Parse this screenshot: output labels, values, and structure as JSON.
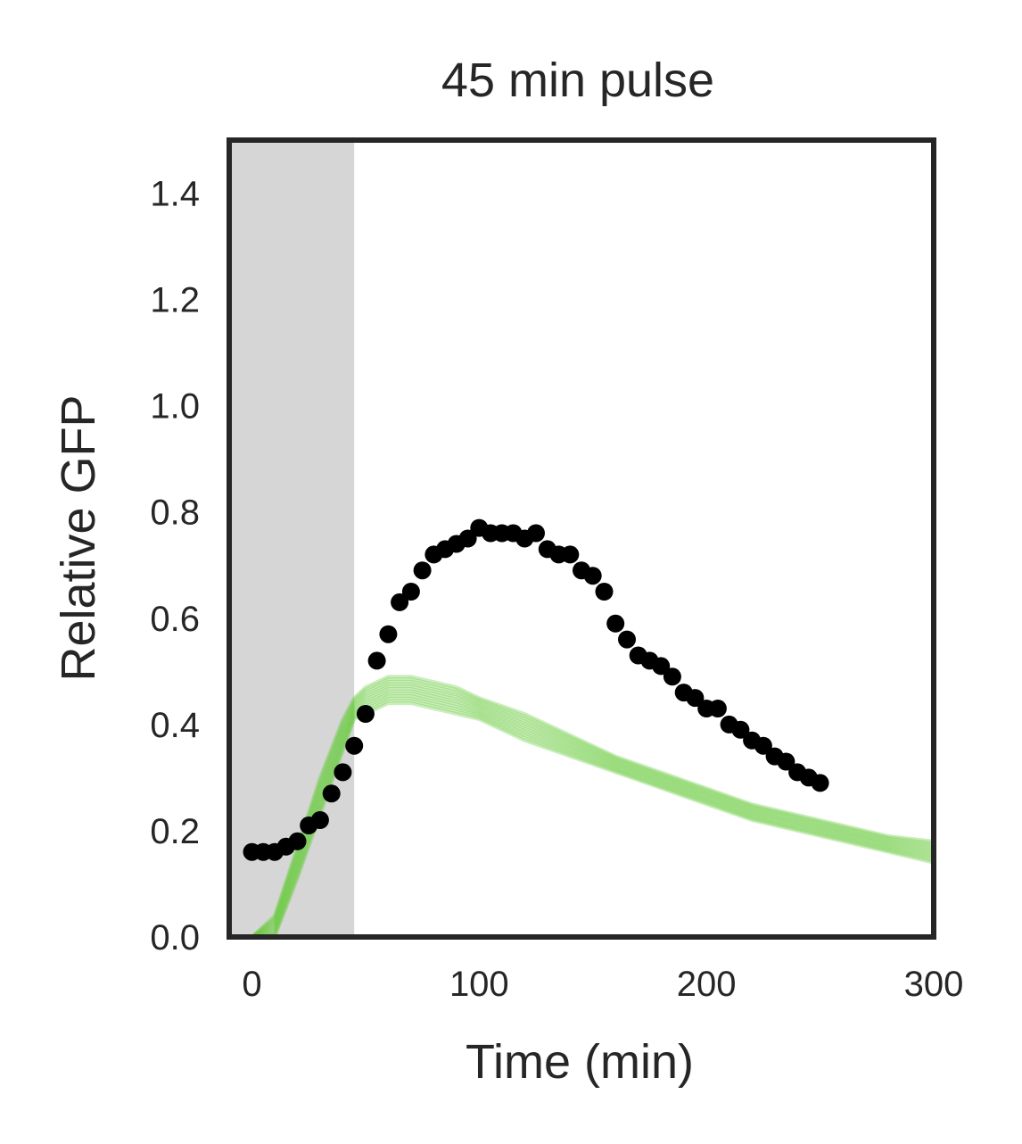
{
  "chart_data": {
    "type": "scatter",
    "title": "45 min pulse",
    "xlabel": "Time (min)",
    "ylabel": "Relative GFP",
    "xlim": [
      -10,
      300
    ],
    "ylim": [
      0,
      1.5
    ],
    "x_ticks": [
      0,
      100,
      200,
      300
    ],
    "y_ticks": [
      0.0,
      0.2,
      0.4,
      0.6,
      0.8,
      1.0,
      1.2,
      1.4
    ],
    "x_tick_labels": [
      "0",
      "100",
      "200",
      "300"
    ],
    "y_tick_labels": [
      "0.0",
      "0.2",
      "0.4",
      "0.6",
      "0.8",
      "1.0",
      "1.2",
      "1.4"
    ],
    "grid": false,
    "legend": "none",
    "shaded_region": {
      "x_start": -10,
      "x_end": 45,
      "color": "#d6d6d6"
    },
    "series": [
      {
        "kind": "points",
        "color": "#000000",
        "x": [
          0,
          5,
          10,
          15,
          20,
          25,
          30,
          35,
          40,
          45,
          50,
          55,
          60,
          65,
          70,
          75,
          80,
          85,
          90,
          95,
          100,
          105,
          110,
          115,
          120,
          125,
          130,
          135,
          140,
          145,
          150,
          155,
          160,
          165,
          170,
          175,
          180,
          185,
          190,
          195,
          200,
          205,
          210,
          215,
          220,
          225,
          230,
          235,
          240,
          245,
          250
        ],
        "y": [
          0.16,
          0.16,
          0.16,
          0.17,
          0.18,
          0.21,
          0.22,
          0.27,
          0.31,
          0.36,
          0.42,
          0.52,
          0.57,
          0.63,
          0.65,
          0.69,
          0.72,
          0.73,
          0.74,
          0.75,
          0.77,
          0.76,
          0.76,
          0.76,
          0.75,
          0.76,
          0.73,
          0.72,
          0.72,
          0.69,
          0.68,
          0.65,
          0.59,
          0.56,
          0.53,
          0.52,
          0.51,
          0.49,
          0.46,
          0.45,
          0.43,
          0.43,
          0.4,
          0.39,
          0.37,
          0.36,
          0.34,
          0.33,
          0.31,
          0.3,
          0.29
        ]
      },
      {
        "kind": "model-trajectories",
        "color": "#6acc3e",
        "count": 12,
        "x": [
          0,
          10,
          20,
          30,
          40,
          45,
          50,
          60,
          70,
          80,
          90,
          100,
          120,
          140,
          160,
          180,
          200,
          220,
          240,
          260,
          280,
          300
        ],
        "y_low": [
          0.0,
          0.0,
          0.11,
          0.23,
          0.35,
          0.41,
          0.42,
          0.44,
          0.44,
          0.43,
          0.42,
          0.41,
          0.37,
          0.34,
          0.31,
          0.28,
          0.25,
          0.22,
          0.2,
          0.18,
          0.16,
          0.14
        ],
        "y_high": [
          0.0,
          0.04,
          0.17,
          0.3,
          0.41,
          0.45,
          0.47,
          0.49,
          0.49,
          0.48,
          0.47,
          0.45,
          0.42,
          0.38,
          0.34,
          0.31,
          0.28,
          0.25,
          0.23,
          0.21,
          0.19,
          0.18
        ]
      }
    ]
  }
}
